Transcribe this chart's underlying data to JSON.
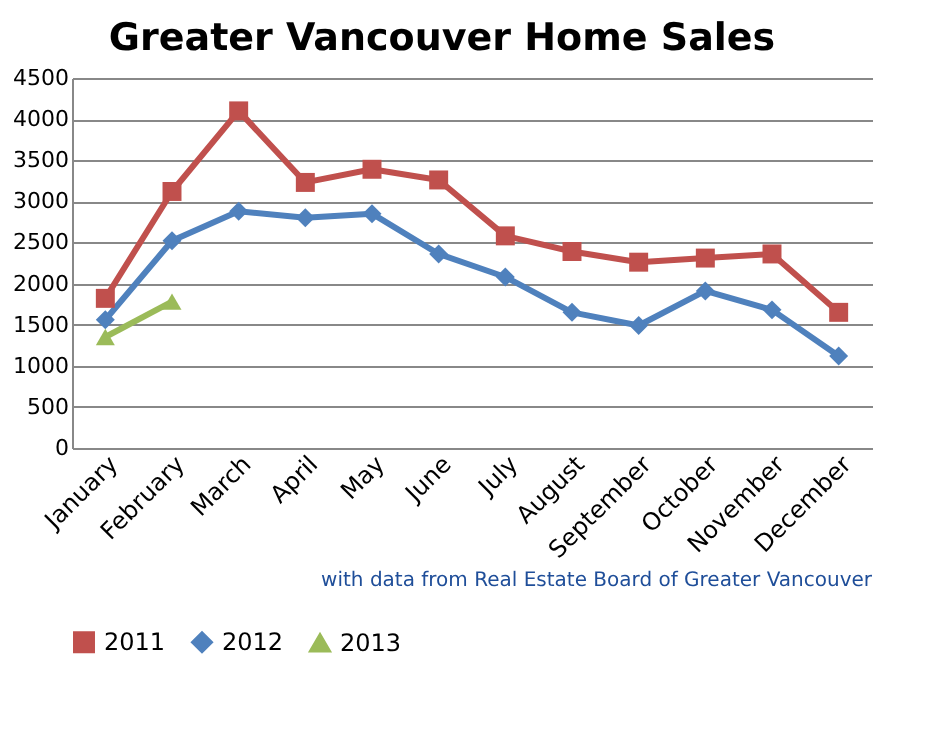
{
  "chart_data": {
    "type": "line",
    "title": "Greater Vancouver Home Sales",
    "categories": [
      "January",
      "February",
      "March",
      "April",
      "May",
      "June",
      "July",
      "August",
      "September",
      "October",
      "November",
      "December"
    ],
    "series": [
      {
        "name": "2011",
        "color": "#c0504d",
        "marker": "square",
        "values": [
          1820,
          3120,
          4100,
          3230,
          3390,
          3260,
          2580,
          2390,
          2260,
          2310,
          2360,
          1650
        ]
      },
      {
        "name": "2012",
        "color": "#4f81bd",
        "marker": "diamond",
        "values": [
          1560,
          2520,
          2880,
          2800,
          2850,
          2360,
          2080,
          1650,
          1490,
          1910,
          1680,
          1120
        ]
      },
      {
        "name": "2013",
        "color": "#9bbb59",
        "marker": "triangle",
        "values": [
          1350,
          1780,
          null,
          null,
          null,
          null,
          null,
          null,
          null,
          null,
          null,
          null
        ]
      }
    ],
    "ylim": [
      0,
      4500
    ],
    "yticks": [
      0,
      500,
      1000,
      1500,
      2000,
      2500,
      3000,
      3500,
      4000,
      4500
    ],
    "grid": "y",
    "legend": "bottom",
    "line_style": "solid",
    "annotations": [
      "with data from Real Estate Board of Greater Vancouver"
    ]
  }
}
